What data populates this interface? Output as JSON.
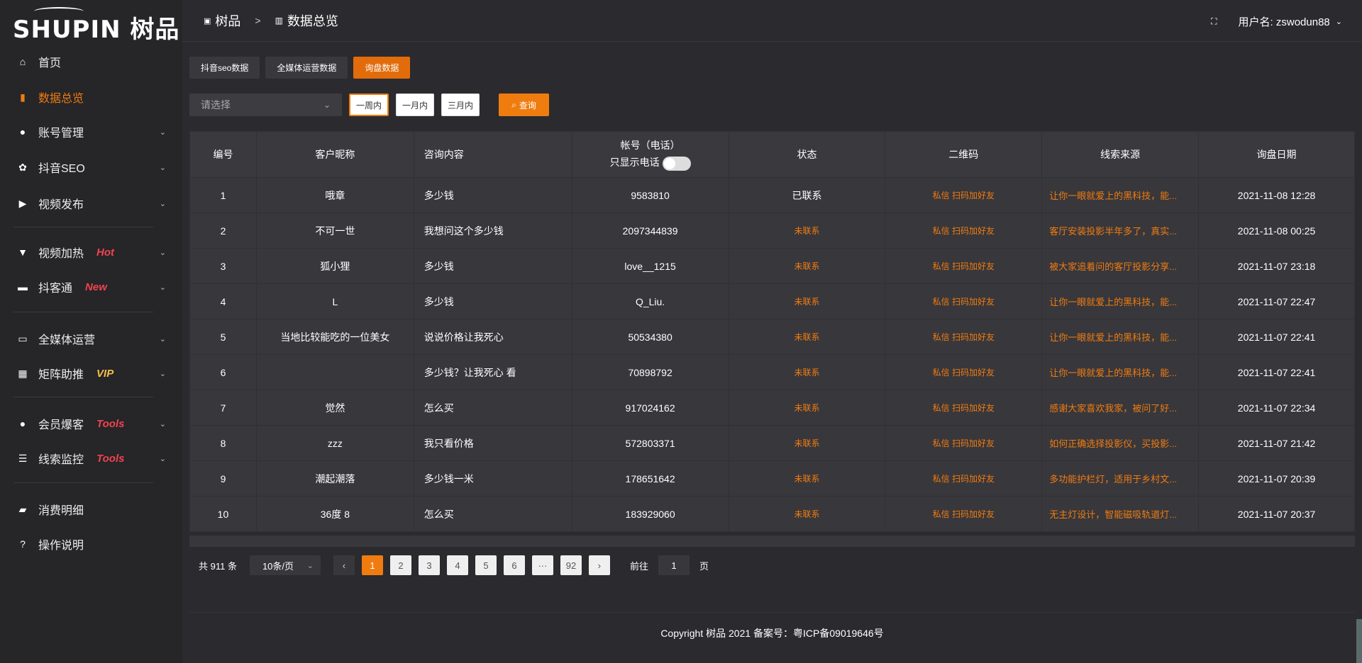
{
  "brand": {
    "logo_text": "SHUPIN 树品"
  },
  "sidebar": {
    "items": [
      {
        "label": "首页",
        "icon": "home-icon"
      },
      {
        "label": "数据总览",
        "icon": "bar-chart-icon",
        "active": true
      },
      {
        "label": "账号管理",
        "icon": "user-icon",
        "chevron": true
      },
      {
        "label": "抖音SEO",
        "icon": "gear-icon",
        "chevron": true
      },
      {
        "label": "视频发布",
        "icon": "video-icon",
        "chevron": true
      },
      {
        "label": "视频加热",
        "icon": "fire-icon",
        "badge": "Hot",
        "chevron": true
      },
      {
        "label": "抖客通",
        "icon": "chat-icon",
        "badge": "New",
        "chevron": true
      },
      {
        "label": "全媒体运营",
        "icon": "monitor-icon",
        "chevron": true
      },
      {
        "label": "矩阵助推",
        "icon": "grid-icon",
        "badge": "VIP",
        "chevron": true
      },
      {
        "label": "会员爆客",
        "icon": "user-icon",
        "badge": "Tools",
        "chevron": true
      },
      {
        "label": "线索监控",
        "icon": "sliders-icon",
        "badge": "Tools",
        "chevron": true
      },
      {
        "label": "消费明细",
        "icon": "wallet-icon"
      },
      {
        "label": "操作说明",
        "icon": "help-icon"
      }
    ]
  },
  "header": {
    "breadcrumb": [
      "树品",
      "数据总览"
    ],
    "separator": ">",
    "user_label": "用户名: zswodun88"
  },
  "tabs": [
    "抖音seo数据",
    "全媒体运营数据",
    "询盘数据"
  ],
  "filters": {
    "select_placeholder": "请选择",
    "ranges": [
      "一周内",
      "一月内",
      "三月内"
    ],
    "query_label": "查询"
  },
  "table": {
    "headers": [
      "编号",
      "客户昵称",
      "咨询内容",
      "帐号（电话）",
      "状态",
      "二维码",
      "线索来源",
      "询盘日期"
    ],
    "phone_toggle_label": "只显示电话",
    "rows": [
      [
        "1",
        "哦章",
        "多少钱",
        "9583810",
        "已联系",
        "私信 扫码加好友",
        "让你一眼就爱上的黑科技，能...",
        "2021-11-08 12:28"
      ],
      [
        "2",
        "不可一世",
        "我想问这个多少钱",
        "2097344839",
        "未联系",
        "私信 扫码加好友",
        "客厅安装投影半年多了，真实...",
        "2021-11-08 00:25"
      ],
      [
        "3",
        "狐小狸",
        "多少钱",
        "love__1215",
        "未联系",
        "私信 扫码加好友",
        "被大家追着问的客厅投影分享...",
        "2021-11-07 23:18"
      ],
      [
        "4",
        "L",
        "多少钱",
        "Q_Liu.",
        "未联系",
        "私信 扫码加好友",
        "让你一眼就爱上的黑科技，能...",
        "2021-11-07 22:47"
      ],
      [
        "5",
        "当地比较能吃的一位美女",
        "说说价格让我死心",
        "50534380",
        "未联系",
        "私信 扫码加好友",
        "让你一眼就爱上的黑科技，能...",
        "2021-11-07 22:41"
      ],
      [
        "6",
        "",
        "多少钱？让我死心 看",
        "70898792",
        "未联系",
        "私信 扫码加好友",
        "让你一眼就爱上的黑科技，能...",
        "2021-11-07 22:41"
      ],
      [
        "7",
        "觉然",
        "怎么买",
        "917024162",
        "未联系",
        "私信 扫码加好友",
        "感谢大家喜欢我家，被问了好...",
        "2021-11-07 22:34"
      ],
      [
        "8",
        "zzz",
        "我只看价格",
        "572803371",
        "未联系",
        "私信 扫码加好友",
        "如何正确选择投影仪，买投影...",
        "2021-11-07 21:42"
      ],
      [
        "9",
        "潮起潮落",
        "多少钱一米",
        "178651642",
        "未联系",
        "私信 扫码加好友",
        "多功能护栏灯，适用于乡村文...",
        "2021-11-07 20:39"
      ],
      [
        "10",
        "36度 8",
        "怎么买",
        "183929060",
        "未联系",
        "私信 扫码加好友",
        "无主灯设计，智能磁吸轨道灯...",
        "2021-11-07 20:37"
      ]
    ]
  },
  "pagination": {
    "total": "共 911 条",
    "page_size": "10条/页",
    "pages": [
      "1",
      "2",
      "3",
      "4",
      "5",
      "6",
      "···",
      "92"
    ],
    "current": "1",
    "goto_label": "前往",
    "goto_value": "1",
    "page_unit": "页"
  },
  "footer": {
    "copyright": "Copyright 树品 2021 备案号：粤ICP备09019646号"
  },
  "colors": {
    "accent": "#f07c10",
    "badge_red": "#f0434f",
    "badge_vip": "#f5c04a"
  }
}
